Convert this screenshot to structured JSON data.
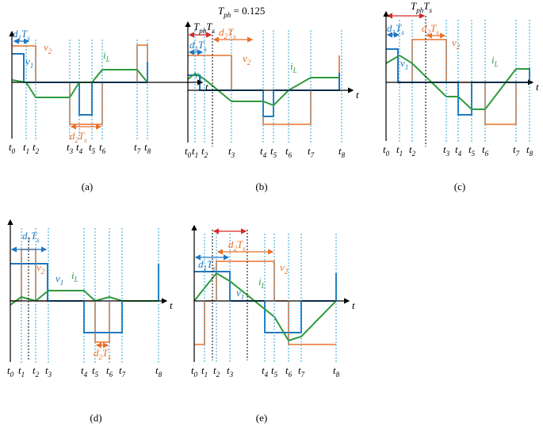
{
  "header": {
    "parts": [
      "T",
      "ph",
      " = 0.125"
    ]
  },
  "panels": [
    {
      "caption": "(a)",
      "axis_label": "t",
      "times": [
        [
          "t",
          "0"
        ],
        [
          "t",
          "1"
        ],
        [
          "t",
          "2"
        ],
        [
          "t",
          "3"
        ],
        [
          "t",
          "4"
        ],
        [
          "t",
          "5"
        ],
        [
          "t",
          "6"
        ],
        [
          "t",
          "7"
        ],
        [
          "t",
          "8"
        ]
      ],
      "labels": [
        [
          "d",
          "1",
          "T",
          "s"
        ],
        [
          "v",
          "1"
        ],
        [
          "v",
          "2"
        ],
        [
          "i",
          "L"
        ],
        [
          "d",
          "2",
          "T",
          "s"
        ]
      ]
    },
    {
      "caption": "(b)",
      "axis_label": "t",
      "times": [
        [
          "t",
          "0"
        ],
        [
          "t",
          "1"
        ],
        [
          "t",
          "2"
        ],
        [
          "t",
          "3"
        ],
        [
          "t",
          "4"
        ],
        [
          "t",
          "5"
        ],
        [
          "t",
          "6"
        ],
        [
          "t",
          "7"
        ],
        [
          "t",
          "8"
        ]
      ],
      "labels": [
        [
          "T",
          "ph",
          "T",
          "s"
        ],
        [
          "d",
          "1",
          "T",
          "s"
        ],
        [
          "d",
          "2",
          "T",
          "s"
        ],
        [
          "v",
          "2"
        ],
        [
          "v",
          "1"
        ],
        [
          "i",
          "L"
        ]
      ]
    },
    {
      "caption": "(c)",
      "axis_label": "t",
      "times": [
        [
          "t",
          "0"
        ],
        [
          "t",
          "1"
        ],
        [
          "t",
          "2"
        ],
        [
          "t",
          "3"
        ],
        [
          "t",
          "4"
        ],
        [
          "t",
          "5"
        ],
        [
          "t",
          "6"
        ],
        [
          "t",
          "7"
        ],
        [
          "t",
          "8"
        ]
      ],
      "labels": [
        [
          "T",
          "ph",
          "T",
          "s"
        ],
        [
          "d",
          "1",
          "T",
          "s"
        ],
        [
          "d",
          "2",
          "T",
          "s"
        ],
        [
          "v",
          "2"
        ],
        [
          "v",
          "1"
        ],
        [
          "i",
          "L"
        ]
      ]
    },
    {
      "caption": "(d)",
      "axis_label": "t",
      "times": [
        [
          "t",
          "0"
        ],
        [
          "t",
          "1"
        ],
        [
          "t",
          "2"
        ],
        [
          "t",
          "3"
        ],
        [
          "t",
          "4"
        ],
        [
          "t",
          "5"
        ],
        [
          "t",
          "6"
        ],
        [
          "t",
          "7"
        ],
        [
          "t",
          "8"
        ]
      ],
      "labels": [
        [
          "d",
          "1",
          "T",
          "s"
        ],
        [
          "v",
          "2"
        ],
        [
          "v",
          "1"
        ],
        [
          "i",
          "L"
        ],
        [
          "d",
          "2",
          "T",
          "s"
        ]
      ]
    },
    {
      "caption": "(e)",
      "axis_label": "t",
      "times": [
        [
          "t",
          "0"
        ],
        [
          "t",
          "1"
        ],
        [
          "t",
          "2"
        ],
        [
          "t",
          "3"
        ],
        [
          "t",
          "4"
        ],
        [
          "t",
          "5"
        ],
        [
          "t",
          "6"
        ],
        [
          "t",
          "7"
        ],
        [
          "t",
          "8"
        ]
      ],
      "labels": [
        [
          "d",
          "1",
          "T",
          "s"
        ],
        [
          "d",
          "2",
          "T",
          "s"
        ],
        [
          "v",
          "2"
        ],
        [
          "v",
          "1"
        ],
        [
          "i",
          "L"
        ]
      ]
    }
  ]
}
